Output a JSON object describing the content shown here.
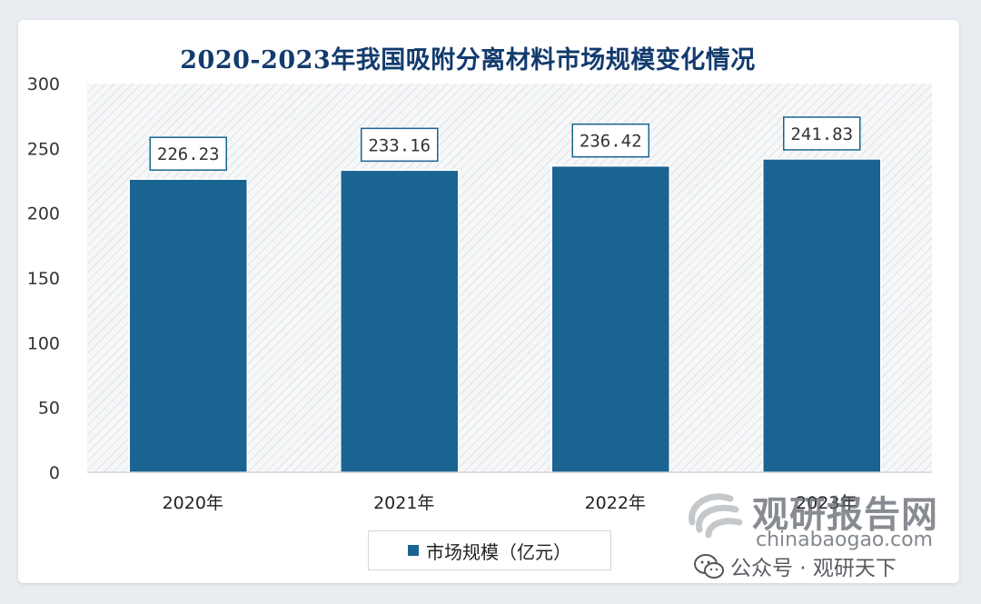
{
  "chart_data": {
    "type": "bar",
    "title": "2020-2023年我国吸附分离材料市场规模变化情况",
    "categories": [
      "2020年",
      "2021年",
      "2022年",
      "2023年"
    ],
    "series": [
      {
        "name": "市场规模（亿元）",
        "values": [
          226.23,
          233.16,
          236.42,
          241.83
        ]
      }
    ],
    "data_labels": [
      "226.23",
      "233.16",
      "236.42",
      "241.83"
    ],
    "ylim": [
      0,
      300
    ],
    "yticks": [
      0,
      50,
      100,
      150,
      200,
      250,
      300
    ],
    "grid": false,
    "legend": "bottom-center",
    "colors": {
      "bar": "#1a6491",
      "title": "#123b6d"
    }
  },
  "watermark": {
    "brand": "观研报告网",
    "url": "chinabaogao.com",
    "account": "公众号 · 观研天下"
  }
}
